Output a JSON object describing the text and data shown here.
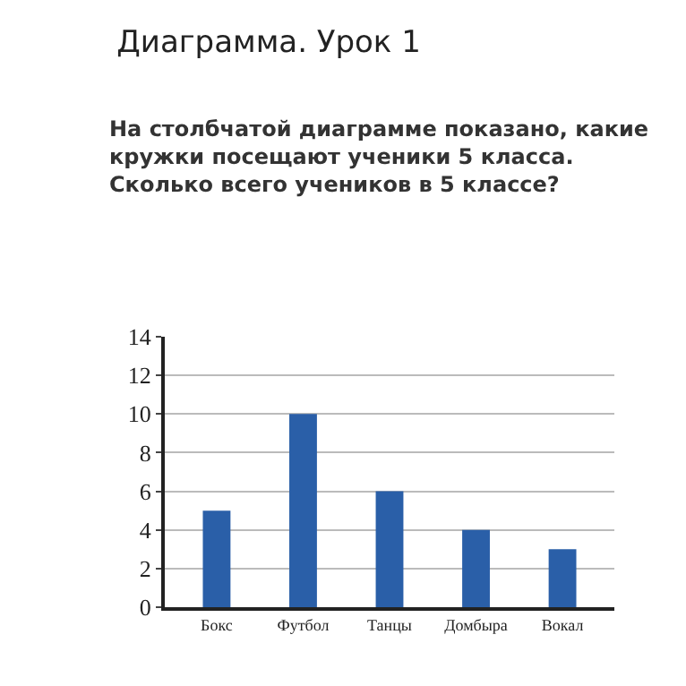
{
  "chart_data": {
    "type": "bar",
    "title": "Диаграмма. Урок 1",
    "subtitle": "На столбчатой диаграмме показано, какие\nкружки посещают ученики 5 класса.\nСколько всего учеников в 5 классе?",
    "categories": [
      "Бокс",
      "Футбол",
      "Танцы",
      "Домбыра",
      "Вокал"
    ],
    "values": [
      5,
      10,
      6,
      4,
      3
    ],
    "color": "#2a5fa8",
    "ylim": [
      0,
      14
    ],
    "yticks": [
      0,
      2,
      4,
      6,
      8,
      10,
      12,
      14
    ],
    "grid": "y"
  }
}
